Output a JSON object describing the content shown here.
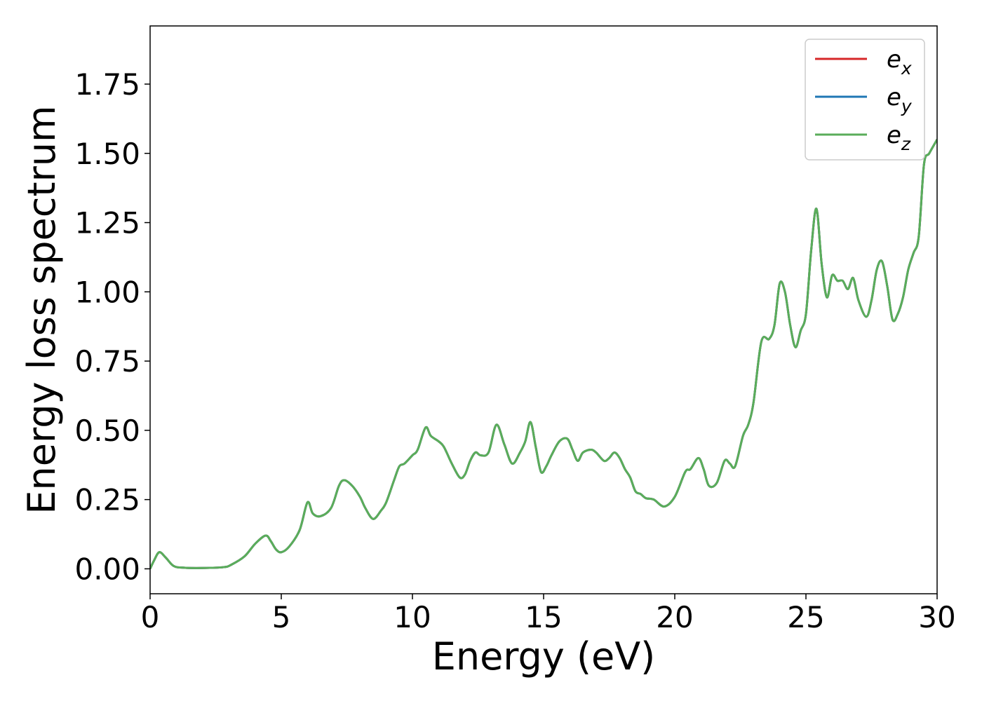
{
  "chart_data": {
    "type": "line",
    "title": "",
    "xlabel": "Energy (eV)",
    "ylabel": "Energy loss spectrum",
    "xlim": [
      0,
      30
    ],
    "ylim": [
      -0.09,
      1.96
    ],
    "xticks": [
      0,
      5,
      10,
      15,
      20,
      25,
      30
    ],
    "xtick_labels": [
      "0",
      "5",
      "10",
      "15",
      "20",
      "25",
      "30"
    ],
    "yticks": [
      0.0,
      0.25,
      0.5,
      0.75,
      1.0,
      1.25,
      1.5,
      1.75
    ],
    "ytick_labels": [
      "0.00",
      "0.25",
      "0.50",
      "0.75",
      "1.00",
      "1.25",
      "1.50",
      "1.75"
    ],
    "grid": false,
    "legend_position": "top-right",
    "x": [
      0,
      0.15,
      0.35,
      0.6,
      0.9,
      1.3,
      2.0,
      2.8,
      3.1,
      3.6,
      4.0,
      4.4,
      4.6,
      4.8,
      5.0,
      5.3,
      5.7,
      6.0,
      6.2,
      6.5,
      6.9,
      7.2,
      7.4,
      7.7,
      8.0,
      8.2,
      8.5,
      8.8,
      9.0,
      9.3,
      9.5,
      9.7,
      10.0,
      10.2,
      10.5,
      10.7,
      11.0,
      11.2,
      11.5,
      11.8,
      12.0,
      12.2,
      12.4,
      12.6,
      12.9,
      13.2,
      13.5,
      13.8,
      14.1,
      14.3,
      14.5,
      14.7,
      14.9,
      15.1,
      15.3,
      15.6,
      15.9,
      16.1,
      16.3,
      16.5,
      16.8,
      17.0,
      17.3,
      17.5,
      17.7,
      17.9,
      18.1,
      18.3,
      18.5,
      18.7,
      18.9,
      19.2,
      19.6,
      20.0,
      20.4,
      20.6,
      20.9,
      21.1,
      21.3,
      21.6,
      21.9,
      22.1,
      22.3,
      22.6,
      22.8,
      23.0,
      23.3,
      23.6,
      23.8,
      24.0,
      24.2,
      24.4,
      24.6,
      24.8,
      25.0,
      25.2,
      25.4,
      25.6,
      25.8,
      26.0,
      26.2,
      26.4,
      26.6,
      26.8,
      27.0,
      27.3,
      27.5,
      27.7,
      27.9,
      28.1,
      28.3,
      28.5,
      28.7,
      28.9,
      29.1,
      29.3,
      29.5,
      29.7,
      30.0
    ],
    "series": [
      {
        "name": "e_x",
        "name_base": "e",
        "name_sub": "x",
        "color": "#d62728",
        "values": [
          0.0,
          0.03,
          0.06,
          0.04,
          0.01,
          0.004,
          0.003,
          0.006,
          0.015,
          0.045,
          0.09,
          0.12,
          0.1,
          0.07,
          0.06,
          0.08,
          0.14,
          0.24,
          0.2,
          0.19,
          0.22,
          0.3,
          0.32,
          0.3,
          0.26,
          0.22,
          0.18,
          0.21,
          0.24,
          0.32,
          0.37,
          0.38,
          0.41,
          0.43,
          0.51,
          0.48,
          0.46,
          0.44,
          0.38,
          0.33,
          0.34,
          0.39,
          0.42,
          0.41,
          0.42,
          0.52,
          0.45,
          0.38,
          0.42,
          0.46,
          0.53,
          0.44,
          0.35,
          0.37,
          0.41,
          0.46,
          0.47,
          0.43,
          0.39,
          0.42,
          0.43,
          0.42,
          0.39,
          0.4,
          0.42,
          0.4,
          0.36,
          0.33,
          0.28,
          0.27,
          0.255,
          0.25,
          0.225,
          0.26,
          0.35,
          0.36,
          0.4,
          0.36,
          0.3,
          0.31,
          0.39,
          0.38,
          0.37,
          0.48,
          0.52,
          0.6,
          0.82,
          0.83,
          0.88,
          1.03,
          1.0,
          0.88,
          0.8,
          0.86,
          0.92,
          1.15,
          1.3,
          1.1,
          0.98,
          1.06,
          1.04,
          1.04,
          1.01,
          1.05,
          0.97,
          0.91,
          0.97,
          1.08,
          1.11,
          1.02,
          0.9,
          0.92,
          0.98,
          1.08,
          1.14,
          1.2,
          1.46,
          1.5,
          1.55
        ]
      },
      {
        "name": "e_y",
        "name_base": "e",
        "name_sub": "y",
        "color": "#1f77b4",
        "values": [
          0.0,
          0.03,
          0.06,
          0.04,
          0.01,
          0.004,
          0.003,
          0.006,
          0.015,
          0.045,
          0.09,
          0.12,
          0.1,
          0.07,
          0.06,
          0.08,
          0.14,
          0.24,
          0.2,
          0.19,
          0.22,
          0.3,
          0.32,
          0.3,
          0.26,
          0.22,
          0.18,
          0.21,
          0.24,
          0.32,
          0.37,
          0.38,
          0.41,
          0.43,
          0.51,
          0.48,
          0.46,
          0.44,
          0.38,
          0.33,
          0.34,
          0.39,
          0.42,
          0.41,
          0.42,
          0.52,
          0.45,
          0.38,
          0.42,
          0.46,
          0.53,
          0.44,
          0.35,
          0.37,
          0.41,
          0.46,
          0.47,
          0.43,
          0.39,
          0.42,
          0.43,
          0.42,
          0.39,
          0.4,
          0.42,
          0.4,
          0.36,
          0.33,
          0.28,
          0.27,
          0.255,
          0.25,
          0.225,
          0.26,
          0.35,
          0.36,
          0.4,
          0.36,
          0.3,
          0.31,
          0.39,
          0.38,
          0.37,
          0.48,
          0.52,
          0.6,
          0.82,
          0.83,
          0.88,
          1.03,
          1.0,
          0.88,
          0.8,
          0.86,
          0.92,
          1.15,
          1.3,
          1.1,
          0.98,
          1.06,
          1.04,
          1.04,
          1.01,
          1.05,
          0.97,
          0.91,
          0.97,
          1.08,
          1.11,
          1.02,
          0.9,
          0.92,
          0.98,
          1.08,
          1.14,
          1.2,
          1.46,
          1.5,
          1.55
        ]
      },
      {
        "name": "e_z",
        "name_base": "e",
        "name_sub": "z",
        "color": "#5aad5a",
        "values": [
          0.0,
          0.03,
          0.06,
          0.04,
          0.01,
          0.004,
          0.003,
          0.006,
          0.015,
          0.045,
          0.09,
          0.12,
          0.1,
          0.07,
          0.06,
          0.08,
          0.14,
          0.24,
          0.2,
          0.19,
          0.22,
          0.3,
          0.32,
          0.3,
          0.26,
          0.22,
          0.18,
          0.21,
          0.24,
          0.32,
          0.37,
          0.38,
          0.41,
          0.43,
          0.51,
          0.48,
          0.46,
          0.44,
          0.38,
          0.33,
          0.34,
          0.39,
          0.42,
          0.41,
          0.42,
          0.52,
          0.45,
          0.38,
          0.42,
          0.46,
          0.53,
          0.44,
          0.35,
          0.37,
          0.41,
          0.46,
          0.47,
          0.43,
          0.39,
          0.42,
          0.43,
          0.42,
          0.39,
          0.4,
          0.42,
          0.4,
          0.36,
          0.33,
          0.28,
          0.27,
          0.255,
          0.25,
          0.225,
          0.26,
          0.35,
          0.36,
          0.4,
          0.36,
          0.3,
          0.31,
          0.39,
          0.38,
          0.37,
          0.48,
          0.52,
          0.6,
          0.82,
          0.83,
          0.88,
          1.03,
          1.0,
          0.88,
          0.8,
          0.86,
          0.92,
          1.15,
          1.3,
          1.1,
          0.98,
          1.06,
          1.04,
          1.04,
          1.01,
          1.05,
          0.97,
          0.91,
          0.97,
          1.08,
          1.11,
          1.02,
          0.9,
          0.92,
          0.98,
          1.08,
          1.14,
          1.2,
          1.46,
          1.5,
          1.55
        ]
      }
    ]
  }
}
